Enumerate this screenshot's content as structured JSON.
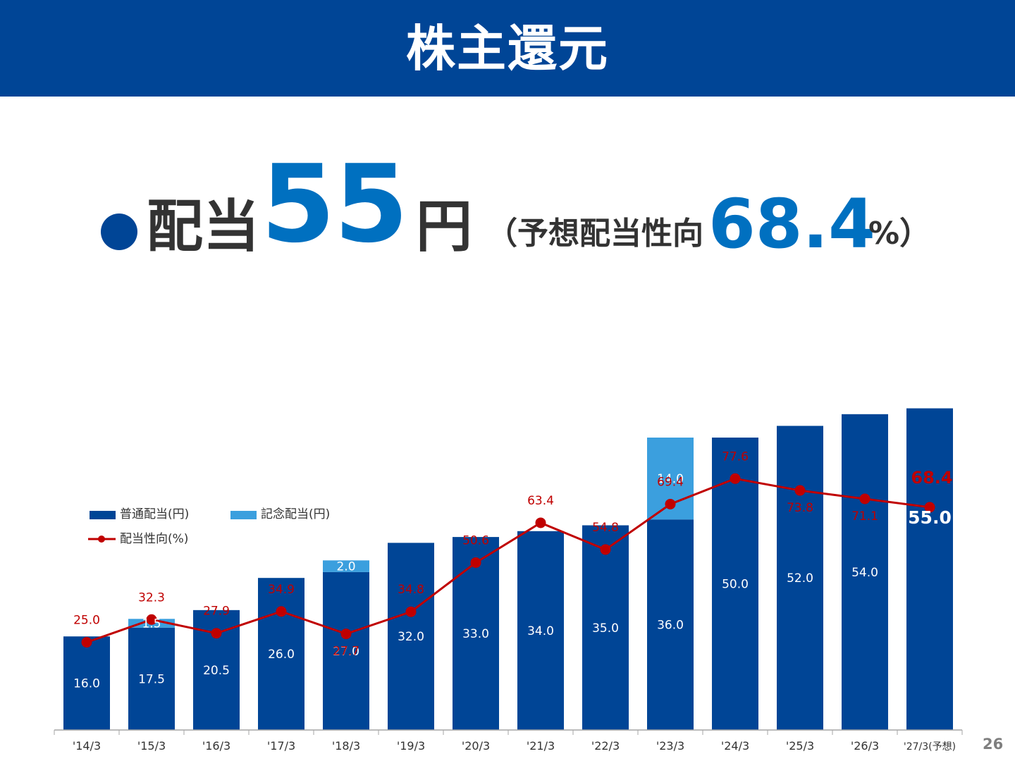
{
  "header": {
    "title": "株主還元"
  },
  "headline": {
    "label": "配当",
    "dividend": "55",
    "unit": "円",
    "payout_prefix": "（予想配当性向",
    "payout_value": "68.4",
    "payout_suffix": "%）"
  },
  "page_number": "26",
  "colors": {
    "header_bg": "#004596",
    "ordinary_bar": "#004596",
    "commemorative_bar": "#3b9fde",
    "payout_line": "#c00000",
    "accent_text": "#0070c0"
  },
  "chart_data": {
    "type": "bar",
    "categories": [
      "'14/3",
      "'15/3",
      "'16/3",
      "'17/3",
      "'18/3",
      "'19/3",
      "'20/3",
      "'21/3",
      "'22/3",
      "'23/3",
      "'24/3",
      "'25/3",
      "'26/3",
      "'27/3(予想)"
    ],
    "series": [
      {
        "name": "普通配当(円)",
        "type": "bar",
        "stack": "dividend",
        "values": [
          16.0,
          17.5,
          20.5,
          26.0,
          27.0,
          32.0,
          33.0,
          34.0,
          35.0,
          36.0,
          50.0,
          52.0,
          54.0,
          55.0
        ]
      },
      {
        "name": "記念配当(円)",
        "type": "bar",
        "stack": "dividend",
        "values": [
          null,
          1.5,
          null,
          null,
          2.0,
          null,
          null,
          null,
          null,
          14.0,
          null,
          null,
          null,
          null
        ]
      },
      {
        "name": "配当性向(%)",
        "type": "line",
        "values": [
          25.0,
          32.3,
          27.9,
          34.9,
          27.7,
          34.8,
          50.6,
          63.4,
          54.8,
          69.4,
          77.6,
          73.8,
          71.1,
          68.4
        ]
      }
    ],
    "bar_labels": [
      "16.0",
      "17.5",
      "20.5",
      "26.0",
      "27.0",
      "32.0",
      "33.0",
      "34.0",
      "35.0",
      "36.0",
      "50.0",
      "52.0",
      "54.0",
      "55.0"
    ],
    "commemorative_labels": [
      "",
      "1.5",
      "",
      "",
      "2.0",
      "",
      "",
      "",
      "",
      "14.0",
      "",
      "",
      "",
      ""
    ],
    "line_labels": [
      "25.0",
      "32.3",
      "27.9",
      "34.9",
      "27.7",
      "34.8",
      "50.6",
      "63.4",
      "54.8",
      "69.4",
      "77.6",
      "73.8",
      "71.1",
      "68.4"
    ],
    "legend_position": "upper-left",
    "grid": false,
    "dividend_axis_range": [
      0,
      55
    ],
    "payout_axis_range": [
      0,
      100
    ]
  }
}
